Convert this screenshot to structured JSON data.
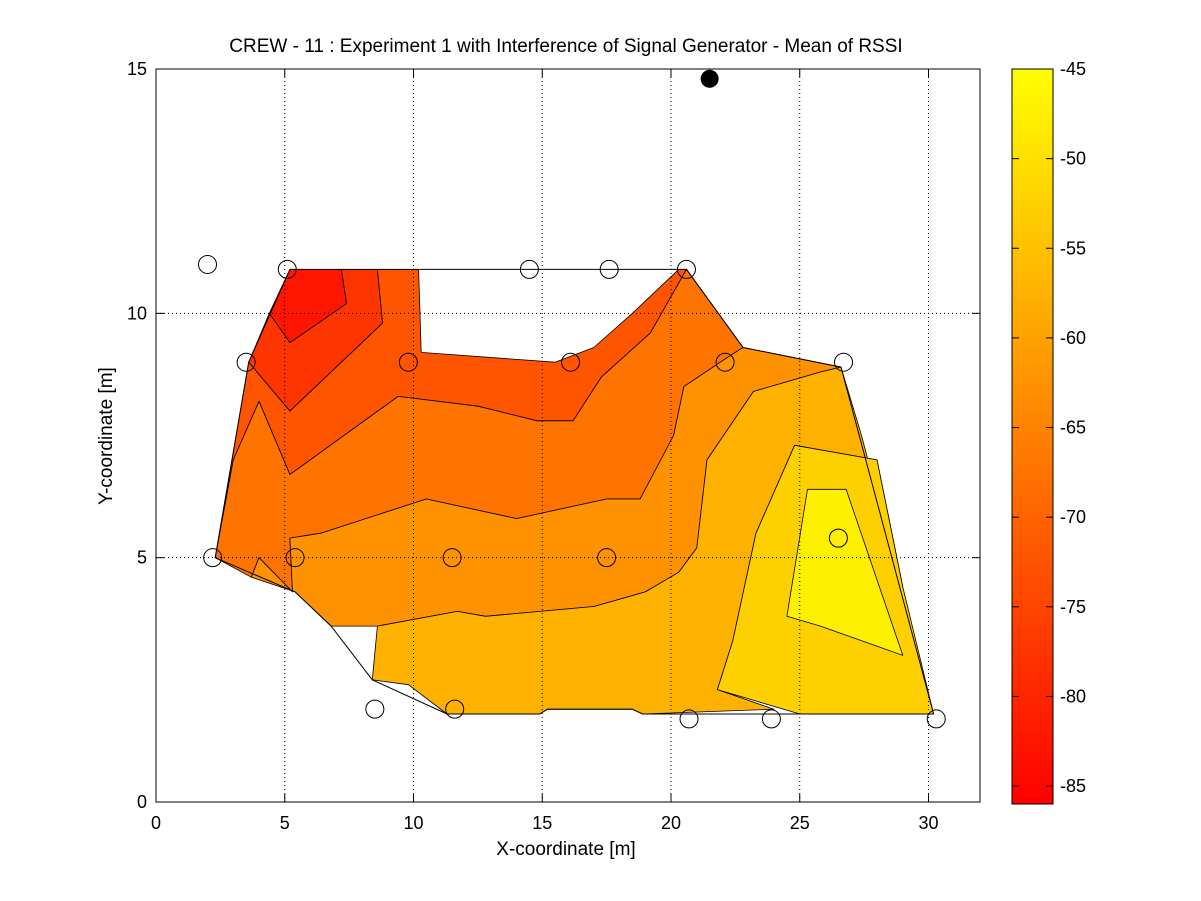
{
  "chart_data": {
    "type": "contour",
    "title": "CREW - 11 : Experiment 1 with Interference of Signal Generator - Mean of RSSI",
    "xlabel": "X-coordinate [m]",
    "ylabel": "Y-coordinate [m]",
    "xlim": [
      0,
      32
    ],
    "ylim": [
      0,
      15
    ],
    "x_ticks": [
      0,
      5,
      10,
      15,
      20,
      25,
      30
    ],
    "y_ticks": [
      0,
      5,
      10,
      15
    ],
    "grid": true,
    "colorbar": {
      "min": -86,
      "max": -45,
      "ticks": [
        -45,
        -50,
        -55,
        -60,
        -65,
        -70,
        -75,
        -80,
        -85
      ],
      "colormap": "autumn",
      "color_low": "#ff0000",
      "color_high": "#ffff00"
    },
    "hull_outline": [
      [
        5.2,
        10.9
      ],
      [
        20.6,
        10.9
      ],
      [
        22.8,
        9.3
      ],
      [
        26.6,
        8.9
      ],
      [
        30.2,
        1.8
      ],
      [
        18.9,
        1.8
      ],
      [
        18.5,
        1.9
      ],
      [
        15.2,
        1.9
      ],
      [
        14.9,
        1.8
      ],
      [
        11.3,
        1.8
      ],
      [
        8.4,
        2.5
      ],
      [
        6.8,
        3.6
      ],
      [
        5.4,
        4.3
      ],
      [
        2.3,
        5.0
      ],
      [
        3.6,
        9.0
      ]
    ],
    "contour_regions": [
      {
        "level": -82.5,
        "polygon": [
          [
            5.2,
            10.9
          ],
          [
            7.2,
            10.9
          ],
          [
            7.4,
            10.2
          ],
          [
            5.2,
            9.4
          ],
          [
            4.4,
            10.0
          ]
        ]
      },
      {
        "level": -77.5,
        "polygon": [
          [
            4.4,
            10.0
          ],
          [
            5.2,
            9.4
          ],
          [
            7.4,
            10.2
          ],
          [
            7.2,
            10.9
          ],
          [
            8.6,
            10.9
          ],
          [
            8.8,
            9.8
          ],
          [
            5.2,
            8.0
          ],
          [
            3.6,
            9.0
          ]
        ]
      },
      {
        "level": -72.5,
        "polygon": [
          [
            3.6,
            9.0
          ],
          [
            5.2,
            8.0
          ],
          [
            8.8,
            9.8
          ],
          [
            8.6,
            10.9
          ],
          [
            10.2,
            10.9
          ],
          [
            10.3,
            9.2
          ],
          [
            15.5,
            9.0
          ],
          [
            17.0,
            9.3
          ],
          [
            18.5,
            10.0
          ],
          [
            20.3,
            10.9
          ],
          [
            20.6,
            10.9
          ],
          [
            19.2,
            9.6
          ],
          [
            17.3,
            8.7
          ],
          [
            16.2,
            7.8
          ],
          [
            14.8,
            7.8
          ],
          [
            12.5,
            8.1
          ],
          [
            9.4,
            8.3
          ],
          [
            5.2,
            6.7
          ],
          [
            4.0,
            8.2
          ],
          [
            3.0,
            7.0
          ],
          [
            2.3,
            5.0
          ]
        ]
      },
      {
        "level": -67.5,
        "polygon": [
          [
            2.3,
            5.0
          ],
          [
            3.0,
            7.0
          ],
          [
            4.0,
            8.2
          ],
          [
            5.2,
            6.7
          ],
          [
            9.4,
            8.3
          ],
          [
            12.5,
            8.1
          ],
          [
            14.8,
            7.8
          ],
          [
            16.2,
            7.8
          ],
          [
            17.3,
            8.7
          ],
          [
            19.2,
            9.6
          ],
          [
            20.6,
            10.9
          ],
          [
            22.8,
            9.3
          ],
          [
            22.2,
            9.1
          ],
          [
            20.5,
            8.5
          ],
          [
            20.1,
            7.5
          ],
          [
            18.8,
            6.2
          ],
          [
            17.5,
            6.2
          ],
          [
            14.0,
            5.8
          ],
          [
            10.5,
            6.2
          ],
          [
            6.4,
            5.5
          ],
          [
            5.2,
            5.4
          ],
          [
            5.3,
            4.3
          ],
          [
            4.0,
            5.0
          ],
          [
            3.7,
            4.6
          ]
        ]
      },
      {
        "level": -62.5,
        "polygon": [
          [
            3.7,
            4.6
          ],
          [
            4.0,
            5.0
          ],
          [
            5.3,
            4.3
          ],
          [
            5.2,
            5.4
          ],
          [
            6.4,
            5.5
          ],
          [
            10.5,
            6.2
          ],
          [
            14.0,
            5.8
          ],
          [
            17.5,
            6.2
          ],
          [
            18.8,
            6.2
          ],
          [
            20.1,
            7.5
          ],
          [
            20.5,
            8.5
          ],
          [
            22.2,
            9.1
          ],
          [
            22.8,
            9.3
          ],
          [
            26.6,
            8.9
          ],
          [
            25.8,
            8.8
          ],
          [
            23.2,
            8.4
          ],
          [
            21.4,
            7.0
          ],
          [
            21.0,
            5.2
          ],
          [
            20.3,
            4.7
          ],
          [
            19.0,
            4.3
          ],
          [
            17.0,
            4.0
          ],
          [
            12.8,
            3.8
          ],
          [
            11.7,
            3.9
          ],
          [
            8.6,
            3.6
          ],
          [
            6.8,
            3.6
          ],
          [
            5.4,
            4.3
          ]
        ]
      },
      {
        "level": -57.5,
        "polygon": [
          [
            8.6,
            3.6
          ],
          [
            11.7,
            3.9
          ],
          [
            12.8,
            3.8
          ],
          [
            17.0,
            4.0
          ],
          [
            19.0,
            4.3
          ],
          [
            20.3,
            4.7
          ],
          [
            21.0,
            5.2
          ],
          [
            21.4,
            7.0
          ],
          [
            23.2,
            8.4
          ],
          [
            25.8,
            8.8
          ],
          [
            26.6,
            8.9
          ],
          [
            27.4,
            7.5
          ],
          [
            28.4,
            5.5
          ],
          [
            29.0,
            4.4
          ],
          [
            28.0,
            7.0
          ],
          [
            24.8,
            7.3
          ],
          [
            23.3,
            5.5
          ],
          [
            22.4,
            3.3
          ],
          [
            21.8,
            2.3
          ],
          [
            24.0,
            1.9
          ],
          [
            18.9,
            1.8
          ],
          [
            18.5,
            1.9
          ],
          [
            15.2,
            1.9
          ],
          [
            14.9,
            1.8
          ],
          [
            11.3,
            1.8
          ],
          [
            9.8,
            2.4
          ],
          [
            8.4,
            2.5
          ]
        ]
      },
      {
        "level": -52.5,
        "polygon": [
          [
            24.8,
            7.3
          ],
          [
            28.0,
            7.0
          ],
          [
            29.0,
            4.4
          ],
          [
            30.2,
            1.8
          ],
          [
            25.0,
            1.8
          ],
          [
            21.8,
            2.3
          ],
          [
            22.4,
            3.3
          ],
          [
            23.3,
            5.5
          ]
        ]
      },
      {
        "level": -47.5,
        "polygon": [
          [
            25.3,
            6.4
          ],
          [
            26.8,
            6.4
          ],
          [
            29.0,
            3.0
          ],
          [
            25.8,
            3.6
          ],
          [
            24.5,
            3.8
          ]
        ]
      }
    ],
    "sensor_nodes": [
      [
        2.0,
        11.0
      ],
      [
        5.1,
        10.9
      ],
      [
        14.5,
        10.9
      ],
      [
        17.6,
        10.9
      ],
      [
        20.6,
        10.9
      ],
      [
        3.5,
        9.0
      ],
      [
        9.8,
        9.0
      ],
      [
        16.1,
        9.0
      ],
      [
        22.1,
        9.0
      ],
      [
        26.7,
        9.0
      ],
      [
        2.2,
        5.0
      ],
      [
        5.4,
        5.0
      ],
      [
        11.5,
        5.0
      ],
      [
        17.5,
        5.0
      ],
      [
        26.5,
        5.4
      ],
      [
        8.5,
        1.9
      ],
      [
        11.6,
        1.9
      ],
      [
        20.7,
        1.7
      ],
      [
        23.9,
        1.7
      ],
      [
        30.3,
        1.7
      ]
    ],
    "interferer": [
      21.5,
      14.8
    ]
  }
}
